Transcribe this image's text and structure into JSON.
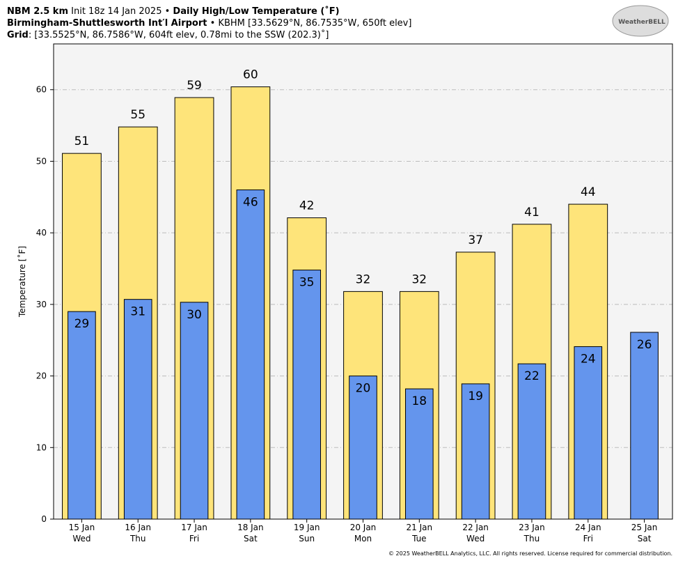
{
  "header": {
    "line1": {
      "bold1": "NBM 2.5 km",
      "normal": " Init 18z 14 Jan 2025 • ",
      "bold2": "Daily High/Low Temperature (˚F)"
    },
    "line2": {
      "bold": "Birmingham-Shuttlesworth Int′l Airport",
      "normal": " • KBHM [33.5629°N, 86.7535°W, 650ft elev]"
    },
    "line3": {
      "bold": "Grid",
      "normal": ": [33.5525°N, 86.7586°W, 604ft elev, 0.78mi to the SSW (202.3)˚]"
    },
    "logo": "WeatherBELL"
  },
  "footer": "© 2025 WeatherBELL Analytics, LLC. All rights reserved. License required for commercial distribution.",
  "chart_data": {
    "type": "bar",
    "ylabel": "Temperature [˚F]",
    "categories": [
      "15 Jan",
      "16 Jan",
      "17 Jan",
      "18 Jan",
      "19 Jan",
      "20 Jan",
      "21 Jan",
      "22 Jan",
      "23 Jan",
      "24 Jan",
      "25 Jan"
    ],
    "category_sublabels": [
      "Wed",
      "Thu",
      "Fri",
      "Sat",
      "Sun",
      "Mon",
      "Tue",
      "Wed",
      "Thu",
      "Fri",
      "Sat"
    ],
    "series": [
      {
        "color": "#fee47a",
        "values": [
          51.1,
          54.8,
          58.9,
          60.4,
          42.1,
          31.8,
          31.8,
          37.3,
          41.2,
          44.0,
          null
        ],
        "value_labels": [
          "51",
          "55",
          "59",
          "60",
          "42",
          "32",
          "32",
          "37",
          "41",
          "44",
          null
        ]
      },
      {
        "color": "#6495ed",
        "values": [
          29.0,
          30.7,
          30.3,
          46.0,
          34.8,
          20.0,
          18.2,
          18.9,
          21.7,
          24.1,
          26.1
        ],
        "value_labels": [
          "29",
          "31",
          "30",
          "46",
          "35",
          "20",
          "18",
          "19",
          "22",
          "24",
          "26"
        ]
      }
    ],
    "ylim": [
      0,
      66.4
    ],
    "yticks": [
      0,
      10,
      20,
      30,
      40,
      50,
      60
    ],
    "grid": true
  }
}
